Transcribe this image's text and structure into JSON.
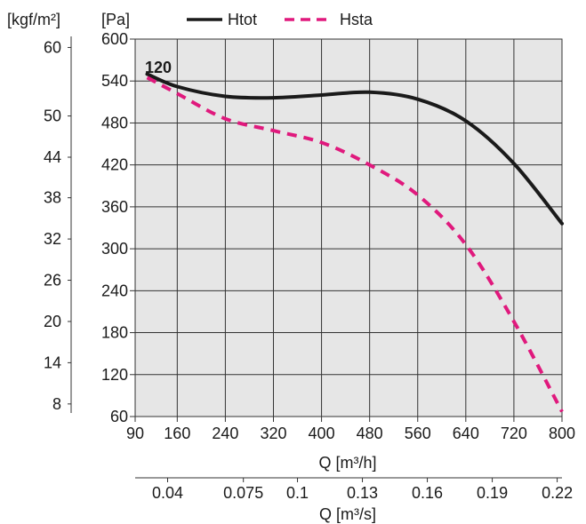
{
  "chart_data": {
    "type": "line",
    "curve_label": "120",
    "legend": [
      {
        "name": "Htot",
        "color": "#1a1a1a",
        "dash": "solid"
      },
      {
        "name": "Hsta",
        "color": "#e0197d",
        "dash": "dashed"
      }
    ],
    "x": {
      "label": "Q [m³/h]",
      "range": [
        90,
        800
      ],
      "ticks": [
        90,
        160,
        240,
        320,
        400,
        480,
        560,
        640,
        720,
        800
      ]
    },
    "x2": {
      "label": "Q [m³/s]",
      "ticks": [
        {
          "label": "0.04",
          "value": 0.04
        },
        {
          "label": "0.075",
          "value": 0.075
        },
        {
          "label": "0.1",
          "value": 0.1
        },
        {
          "label": "0.13",
          "value": 0.13
        },
        {
          "label": "0.16",
          "value": 0.16
        },
        {
          "label": "0.19",
          "value": 0.19
        },
        {
          "label": "0.22",
          "value": 0.22
        }
      ]
    },
    "y": {
      "unit": "[Pa]",
      "range": [
        60,
        600
      ],
      "ticks": [
        60,
        120,
        180,
        240,
        300,
        360,
        420,
        480,
        540,
        600
      ]
    },
    "y2": {
      "unit": "[kgf/m²]",
      "ticks": [
        {
          "label": "60",
          "pa": 588
        },
        {
          "label": "50",
          "pa": 490
        },
        {
          "label": "44",
          "pa": 431
        },
        {
          "label": "38",
          "pa": 373
        },
        {
          "label": "32",
          "pa": 314
        },
        {
          "label": "26",
          "pa": 255
        },
        {
          "label": "20",
          "pa": 196
        },
        {
          "label": "14",
          "pa": 137
        },
        {
          "label": "8",
          "pa": 78
        }
      ]
    },
    "grid": true,
    "series": [
      {
        "name": "Htot",
        "color": "#1a1a1a",
        "points": [
          [
            110,
            550
          ],
          [
            160,
            532
          ],
          [
            240,
            518
          ],
          [
            320,
            516
          ],
          [
            400,
            520
          ],
          [
            480,
            524
          ],
          [
            560,
            514
          ],
          [
            640,
            483
          ],
          [
            720,
            422
          ],
          [
            800,
            336
          ]
        ]
      },
      {
        "name": "Hsta",
        "color": "#e0197d",
        "points": [
          [
            110,
            545
          ],
          [
            160,
            522
          ],
          [
            240,
            486
          ],
          [
            320,
            469
          ],
          [
            400,
            452
          ],
          [
            480,
            420
          ],
          [
            560,
            377
          ],
          [
            640,
            306
          ],
          [
            720,
            196
          ],
          [
            800,
            67
          ]
        ]
      }
    ]
  }
}
